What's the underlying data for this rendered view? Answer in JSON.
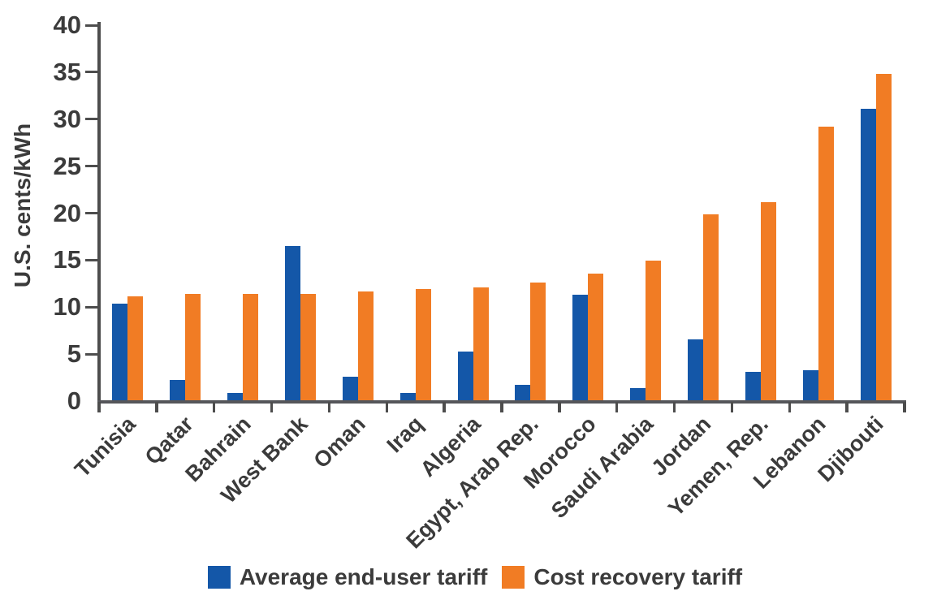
{
  "figure": {
    "background_color": "#ffffff",
    "axis_color": "#4d4d4d",
    "text_color": "#3b3b3b"
  },
  "chart_data": {
    "type": "bar",
    "title": "",
    "xlabel": "",
    "ylabel": "U.S. cents/kWh",
    "ylim": [
      0,
      40
    ],
    "yticks": [
      0,
      5,
      10,
      15,
      20,
      25,
      30,
      35,
      40
    ],
    "grid": false,
    "legend_position": "bottom-center",
    "categories": [
      "Tunisia",
      "Qatar",
      "Bahrain",
      "West Bank",
      "Oman",
      "Iraq",
      "Algeria",
      "Egypt, Arab Rep.",
      "Morocco",
      "Saudi Arabia",
      "Jordan",
      "Yemen, Rep.",
      "Lebanon",
      "Djibouti"
    ],
    "series": [
      {
        "name": "Average end-user tariff",
        "color": "#1457A8",
        "values": [
          10.3,
          2.2,
          0.8,
          16.4,
          2.5,
          0.8,
          5.2,
          1.6,
          11.2,
          1.3,
          6.5,
          3.0,
          3.2,
          31.0
        ]
      },
      {
        "name": "Cost recovery tariff",
        "color": "#F17C24",
        "values": [
          11.1,
          11.3,
          11.3,
          11.3,
          11.6,
          11.8,
          12.0,
          12.5,
          13.5,
          14.9,
          19.8,
          21.1,
          29.1,
          34.7
        ]
      }
    ]
  }
}
